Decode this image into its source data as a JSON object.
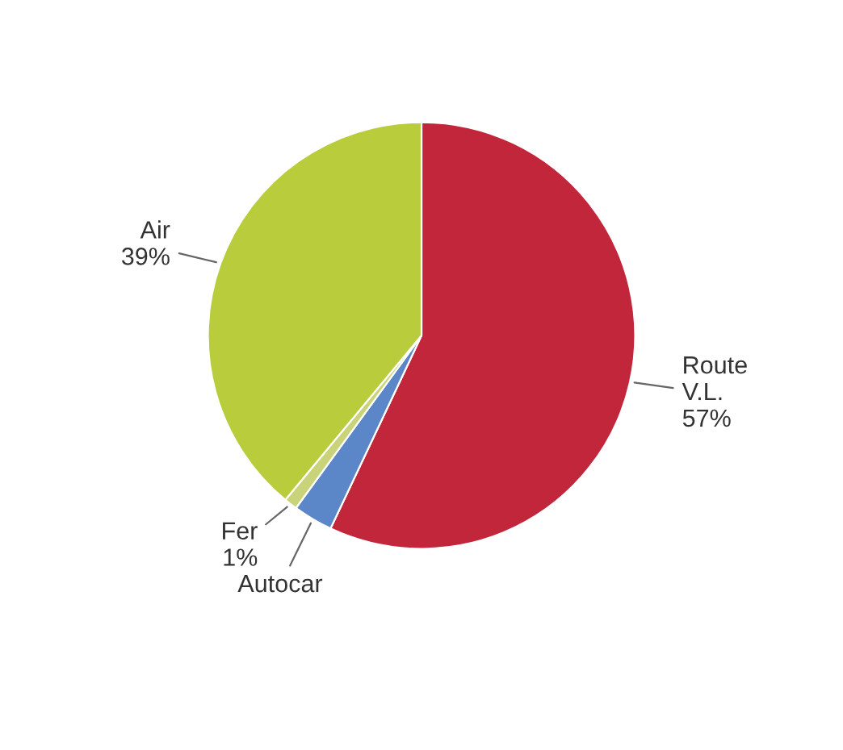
{
  "chart_data": {
    "type": "pie",
    "categories": [
      "Route\nV.L.",
      "Autocar",
      "Fer",
      "Air"
    ],
    "values": [
      57,
      3,
      1,
      39
    ],
    "value_labels": [
      "57%",
      null,
      "1%",
      "39%"
    ],
    "colors": [
      "#c2263a",
      "#5b86c8",
      "#c9d47a",
      "#b9cc3c"
    ]
  }
}
